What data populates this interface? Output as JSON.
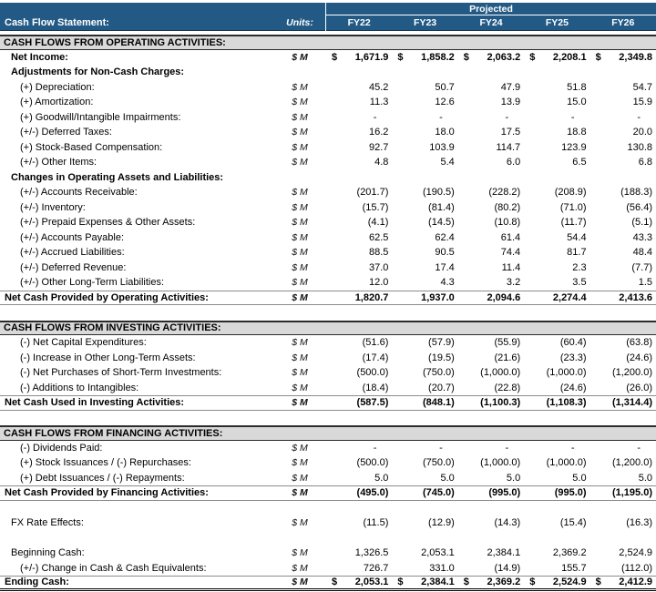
{
  "colors": {
    "header_blue": "#235A85",
    "header_text": "#FFFFFF",
    "section_band_gray": "#D9D9D9",
    "body_text": "#000000"
  },
  "header": {
    "title": "Cash Flow Statement:",
    "units_label": "Units:",
    "projected_label": "Projected",
    "years": [
      "FY22",
      "FY23",
      "FY24",
      "FY25",
      "FY26"
    ]
  },
  "rows": [
    {
      "type": "section",
      "label": "CASH FLOWS FROM OPERATING ACTIVITIES:"
    },
    {
      "type": "item",
      "bold": true,
      "dollar": true,
      "indent": 1,
      "label": "Net Income:",
      "unit": "$ M",
      "values": [
        "1,671.9",
        "1,858.2",
        "2,063.2",
        "2,208.1",
        "2,349.8"
      ]
    },
    {
      "type": "group",
      "indent": 1,
      "label": "Adjustments for Non-Cash Charges:"
    },
    {
      "type": "item",
      "indent": 2,
      "label": "(+) Depreciation:",
      "unit": "$ M",
      "values": [
        "45.2",
        "50.7",
        "47.9",
        "51.8",
        "54.7"
      ]
    },
    {
      "type": "item",
      "indent": 2,
      "label": "(+) Amortization:",
      "unit": "$ M",
      "values": [
        "11.3",
        "12.6",
        "13.9",
        "15.0",
        "15.9"
      ]
    },
    {
      "type": "item",
      "indent": 2,
      "label": "(+) Goodwill/Intangible Impairments:",
      "unit": "$ M",
      "values": [
        "-",
        "-",
        "-",
        "-",
        "-"
      ]
    },
    {
      "type": "item",
      "indent": 2,
      "label": "(+/-) Deferred Taxes:",
      "unit": "$ M",
      "values": [
        "16.2",
        "18.0",
        "17.5",
        "18.8",
        "20.0"
      ]
    },
    {
      "type": "item",
      "indent": 2,
      "label": "(+) Stock-Based Compensation:",
      "unit": "$ M",
      "values": [
        "92.7",
        "103.9",
        "114.7",
        "123.9",
        "130.8"
      ]
    },
    {
      "type": "item",
      "indent": 2,
      "label": "(+/-) Other Items:",
      "unit": "$ M",
      "values": [
        "4.8",
        "5.4",
        "6.0",
        "6.5",
        "6.8"
      ]
    },
    {
      "type": "group",
      "indent": 1,
      "label": "Changes in Operating Assets and Liabilities:"
    },
    {
      "type": "item",
      "indent": 2,
      "label": "(+/-) Accounts Receivable:",
      "unit": "$ M",
      "values": [
        "(201.7)",
        "(190.5)",
        "(228.2)",
        "(208.9)",
        "(188.3)"
      ]
    },
    {
      "type": "item",
      "indent": 2,
      "label": "(+/-) Inventory:",
      "unit": "$ M",
      "values": [
        "(15.7)",
        "(81.4)",
        "(80.2)",
        "(71.0)",
        "(56.4)"
      ]
    },
    {
      "type": "item",
      "indent": 2,
      "label": "(+/-) Prepaid Expenses & Other Assets:",
      "unit": "$ M",
      "values": [
        "(4.1)",
        "(14.5)",
        "(10.8)",
        "(11.7)",
        "(5.1)"
      ]
    },
    {
      "type": "item",
      "indent": 2,
      "label": "(+/-) Accounts Payable:",
      "unit": "$ M",
      "values": [
        "62.5",
        "62.4",
        "61.4",
        "54.4",
        "43.3"
      ]
    },
    {
      "type": "item",
      "indent": 2,
      "label": "(+/-) Accrued Liabilities:",
      "unit": "$ M",
      "values": [
        "88.5",
        "90.5",
        "74.4",
        "81.7",
        "48.4"
      ]
    },
    {
      "type": "item",
      "indent": 2,
      "label": "(+/-) Deferred Revenue:",
      "unit": "$ M",
      "values": [
        "37.0",
        "17.4",
        "11.4",
        "2.3",
        "(7.7)"
      ]
    },
    {
      "type": "item",
      "indent": 2,
      "label": "(+/-) Other Long-Term Liabilities:",
      "unit": "$ M",
      "values": [
        "12.0",
        "4.3",
        "3.2",
        "3.5",
        "1.5"
      ]
    },
    {
      "type": "subtotal",
      "indent": 0,
      "label": "Net Cash Provided by Operating Activities:",
      "unit": "$ M",
      "values": [
        "1,820.7",
        "1,937.0",
        "2,094.6",
        "2,274.4",
        "2,413.6"
      ]
    },
    {
      "type": "spacer"
    },
    {
      "type": "section",
      "label": "CASH FLOWS FROM INVESTING ACTIVITIES:"
    },
    {
      "type": "item",
      "indent": 2,
      "label": "(-) Net Capital Expenditures:",
      "unit": "$ M",
      "values": [
        "(51.6)",
        "(57.9)",
        "(55.9)",
        "(60.4)",
        "(63.8)"
      ]
    },
    {
      "type": "item",
      "indent": 2,
      "label": "(-) Increase in Other Long-Term Assets:",
      "unit": "$ M",
      "values": [
        "(17.4)",
        "(19.5)",
        "(21.6)",
        "(23.3)",
        "(24.6)"
      ]
    },
    {
      "type": "item",
      "indent": 2,
      "label": "(-) Net Purchases of Short-Term Investments:",
      "unit": "$ M",
      "values": [
        "(500.0)",
        "(750.0)",
        "(1,000.0)",
        "(1,000.0)",
        "(1,200.0)"
      ]
    },
    {
      "type": "item",
      "indent": 2,
      "label": "(-) Additions to Intangibles:",
      "unit": "$ M",
      "values": [
        "(18.4)",
        "(20.7)",
        "(22.8)",
        "(24.6)",
        "(26.0)"
      ]
    },
    {
      "type": "subtotal",
      "indent": 0,
      "label": "Net Cash Used in Investing Activities:",
      "unit": "$ M",
      "values": [
        "(587.5)",
        "(848.1)",
        "(1,100.3)",
        "(1,108.3)",
        "(1,314.4)"
      ]
    },
    {
      "type": "spacer"
    },
    {
      "type": "section",
      "label": "CASH FLOWS FROM FINANCING ACTIVITIES:"
    },
    {
      "type": "item",
      "indent": 2,
      "label": "(-) Dividends Paid:",
      "unit": "$ M",
      "values": [
        "-",
        "-",
        "-",
        "-",
        "-"
      ]
    },
    {
      "type": "item",
      "indent": 2,
      "label": "(+) Stock Issuances / (-) Repurchases:",
      "unit": "$ M",
      "values": [
        "(500.0)",
        "(750.0)",
        "(1,000.0)",
        "(1,000.0)",
        "(1,200.0)"
      ]
    },
    {
      "type": "item",
      "indent": 2,
      "label": "(+) Debt Issuances / (-) Repayments:",
      "unit": "$ M",
      "values": [
        "5.0",
        "5.0",
        "5.0",
        "5.0",
        "5.0"
      ]
    },
    {
      "type": "subtotal",
      "indent": 0,
      "label": "Net Cash Provided by Financing Activities:",
      "unit": "$ M",
      "values": [
        "(495.0)",
        "(745.0)",
        "(995.0)",
        "(995.0)",
        "(1,195.0)"
      ]
    },
    {
      "type": "spacer"
    },
    {
      "type": "item",
      "indent": 1,
      "label": "FX Rate Effects:",
      "unit": "$ M",
      "values": [
        "(11.5)",
        "(12.9)",
        "(14.3)",
        "(15.4)",
        "(16.3)"
      ]
    },
    {
      "type": "spacer"
    },
    {
      "type": "item",
      "indent": 1,
      "label": "Beginning Cash:",
      "unit": "$ M",
      "values": [
        "1,326.5",
        "2,053.1",
        "2,384.1",
        "2,369.2",
        "2,524.9"
      ]
    },
    {
      "type": "item",
      "indent": 2,
      "label": "(+/-) Change in Cash & Cash Equivalents:",
      "unit": "$ M",
      "values": [
        "726.7",
        "331.0",
        "(14.9)",
        "155.7",
        "(112.0)"
      ]
    },
    {
      "type": "grandtotal",
      "dollar": true,
      "indent": 0,
      "label": "Ending Cash:",
      "unit": "$ M",
      "values": [
        "2,053.1",
        "2,384.1",
        "2,369.2",
        "2,524.9",
        "2,412.9"
      ]
    }
  ]
}
